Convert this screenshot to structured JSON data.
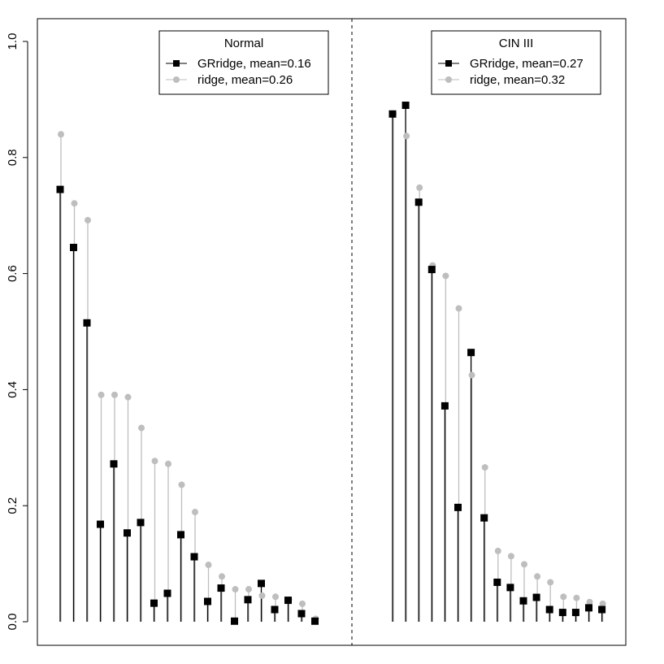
{
  "chart_data": {
    "type": "scatter",
    "style": "stem-plot",
    "ylim": [
      0,
      1
    ],
    "yticks": [
      "0.0",
      "0.2",
      "0.4",
      "0.6",
      "0.8",
      "1.0"
    ],
    "colors": {
      "GRridge": "#000000",
      "ridge": "#bebebe"
    },
    "panels": [
      {
        "legend": {
          "title": "Normal",
          "entries": [
            "GRridge, mean=0.16",
            "ridge, mean=0.26"
          ]
        },
        "series": [
          {
            "key": "GRridge",
            "values": [
              0.745,
              0.645,
              0.515,
              0.168,
              0.272,
              0.153,
              0.171,
              0.032,
              0.049,
              0.15,
              0.112,
              0.035,
              0.058,
              0.001,
              0.038,
              0.066,
              0.021,
              0.037,
              0.014,
              0.001
            ]
          },
          {
            "key": "ridge",
            "values": [
              0.84,
              0.721,
              0.692,
              0.391,
              0.391,
              0.387,
              0.334,
              0.277,
              0.272,
              0.236,
              0.189,
              0.098,
              0.078,
              0.056,
              0.056,
              0.045,
              0.043,
              0.038,
              0.031,
              0.005
            ]
          }
        ]
      },
      {
        "legend": {
          "title": "CIN III",
          "entries": [
            "GRridge, mean=0.27",
            "ridge, mean=0.32"
          ]
        },
        "series": [
          {
            "key": "GRridge",
            "values": [
              0.875,
              0.89,
              0.723,
              0.607,
              0.372,
              0.197,
              0.464,
              0.179,
              0.068,
              0.059,
              0.036,
              0.042,
              0.021,
              0.016,
              0.016,
              0.024,
              0.021
            ]
          },
          {
            "key": "ridge",
            "values": [
              0.875,
              0.837,
              0.748,
              0.614,
              0.596,
              0.54,
              0.425,
              0.266,
              0.122,
              0.113,
              0.099,
              0.078,
              0.068,
              0.043,
              0.041,
              0.034,
              0.031
            ]
          }
        ]
      }
    ]
  }
}
